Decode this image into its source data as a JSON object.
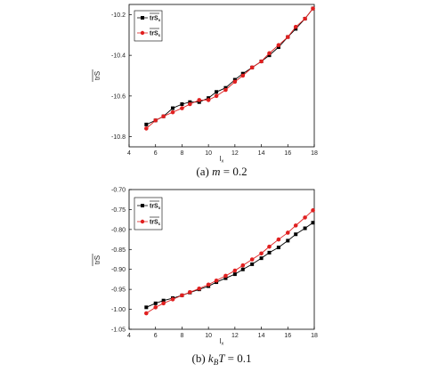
{
  "chart_data": [
    {
      "type": "line",
      "caption_prefix": "(a) ",
      "caption_var": "m",
      "caption_rest": " = 0.2",
      "xlabel": "l",
      "xlabel_sub": "x",
      "ylabel": "trS",
      "xlim": [
        4,
        18
      ],
      "ylim": [
        -10.85,
        -10.15
      ],
      "xticks": [
        4,
        6,
        8,
        10,
        12,
        14,
        16,
        18
      ],
      "yticks": [
        -10.8,
        -10.6,
        -10.4,
        -10.2
      ],
      "xtick_labels": [
        "4",
        "6",
        "8",
        "10",
        "12",
        "14",
        "16",
        "18"
      ],
      "ytick_labels": [
        "-10.8",
        "-10.6",
        "-10.4",
        "-10.2"
      ],
      "legend_position": "top-left",
      "series": [
        {
          "name": "trS",
          "name_sub": "x",
          "color": "#000000",
          "marker": "square",
          "x": [
            5.3,
            6.0,
            6.6,
            7.3,
            8.0,
            8.6,
            9.3,
            10.0,
            10.6,
            11.3,
            12.0,
            12.6,
            13.3,
            14.0,
            14.6,
            15.3,
            16.0,
            16.6,
            17.3,
            17.9
          ],
          "y": [
            -10.74,
            -10.72,
            -10.7,
            -10.66,
            -10.64,
            -10.63,
            -10.63,
            -10.61,
            -10.58,
            -10.56,
            -10.52,
            -10.49,
            -10.46,
            -10.43,
            -10.4,
            -10.36,
            -10.31,
            -10.27,
            -10.22,
            -10.17
          ]
        },
        {
          "name": "trS",
          "name_sub": "c",
          "color": "#e02020",
          "marker": "circle",
          "x": [
            5.3,
            6.0,
            6.6,
            7.3,
            8.0,
            8.6,
            9.3,
            10.0,
            10.6,
            11.3,
            12.0,
            12.6,
            13.3,
            14.0,
            14.6,
            15.3,
            16.0,
            16.6,
            17.3,
            17.9
          ],
          "y": [
            -10.76,
            -10.72,
            -10.7,
            -10.68,
            -10.66,
            -10.64,
            -10.62,
            -10.62,
            -10.6,
            -10.57,
            -10.53,
            -10.5,
            -10.46,
            -10.43,
            -10.39,
            -10.35,
            -10.31,
            -10.26,
            -10.22,
            -10.17
          ]
        }
      ]
    },
    {
      "type": "line",
      "caption_prefix": "(b) ",
      "caption_var": "k",
      "caption_sub": "B",
      "caption_var2": "T",
      "caption_rest": " = 0.1",
      "xlabel": "l",
      "xlabel_sub": "x",
      "ylabel": "trS",
      "xlim": [
        4,
        18
      ],
      "ylim": [
        -1.05,
        -0.7
      ],
      "xticks": [
        4,
        6,
        8,
        10,
        12,
        14,
        16,
        18
      ],
      "yticks": [
        -1.05,
        -1.0,
        -0.95,
        -0.9,
        -0.85,
        -0.8,
        -0.75,
        -0.7
      ],
      "xtick_labels": [
        "4",
        "6",
        "8",
        "10",
        "12",
        "14",
        "16",
        "18"
      ],
      "ytick_labels": [
        "-1.05",
        "-1.00",
        "-0.95",
        "-0.90",
        "-0.85",
        "-0.80",
        "-0.75",
        "-0.70"
      ],
      "legend_position": "top-left",
      "series": [
        {
          "name": "trS",
          "name_sub": "x",
          "color": "#000000",
          "marker": "square",
          "x": [
            5.3,
            6.0,
            6.6,
            7.3,
            8.0,
            8.6,
            9.3,
            10.0,
            10.6,
            11.3,
            12.0,
            12.6,
            13.3,
            14.0,
            14.6,
            15.3,
            16.0,
            16.6,
            17.3,
            17.9
          ],
          "y": [
            -0.995,
            -0.985,
            -0.978,
            -0.972,
            -0.965,
            -0.958,
            -0.95,
            -0.942,
            -0.932,
            -0.922,
            -0.912,
            -0.9,
            -0.887,
            -0.872,
            -0.858,
            -0.845,
            -0.828,
            -0.812,
            -0.797,
            -0.783
          ]
        },
        {
          "name": "trS",
          "name_sub": "c",
          "color": "#e02020",
          "marker": "circle",
          "x": [
            5.3,
            6.0,
            6.6,
            7.3,
            8.0,
            8.6,
            9.3,
            10.0,
            10.6,
            11.3,
            12.0,
            12.6,
            13.3,
            14.0,
            14.6,
            15.3,
            16.0,
            16.6,
            17.3,
            17.9
          ],
          "y": [
            -1.01,
            -0.995,
            -0.985,
            -0.975,
            -0.965,
            -0.957,
            -0.948,
            -0.938,
            -0.928,
            -0.916,
            -0.903,
            -0.89,
            -0.875,
            -0.86,
            -0.843,
            -0.825,
            -0.808,
            -0.79,
            -0.77,
            -0.752
          ]
        }
      ]
    }
  ]
}
